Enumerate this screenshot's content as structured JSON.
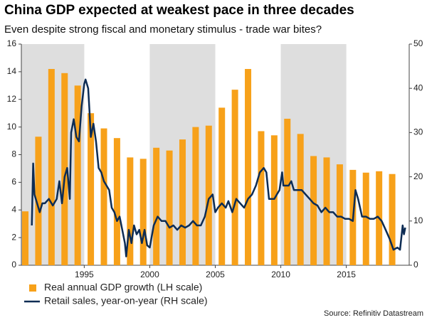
{
  "chart_data": {
    "type": "bar-line",
    "title": "China GDP expected at weakest pace in three decades",
    "subtitle": "Even despite strong fiscal and monetary stimulus - trade war bites?",
    "source": "Source: Refinitiv Datastream",
    "xlim": [
      1990.2,
      2019.8
    ],
    "xticks": [
      1995,
      2000,
      2005,
      2010,
      2015
    ],
    "ylim": [
      0,
      16
    ],
    "yticks": [
      0,
      2,
      4,
      6,
      8,
      10,
      12,
      14,
      16
    ],
    "y2lim": [
      0,
      50
    ],
    "y2ticks": [
      0,
      10,
      20,
      30,
      40,
      50
    ],
    "shading": "#dedede",
    "series": [
      {
        "name": "Real annual GDP growth (LH scale)",
        "color": "#f7a11a",
        "type": "bar",
        "x": [
          1990,
          1991,
          1992,
          1993,
          1994,
          1995,
          1996,
          1997,
          1998,
          1999,
          2000,
          2001,
          2002,
          2003,
          2004,
          2005,
          2006,
          2007,
          2008,
          2009,
          2010,
          2011,
          2012,
          2013,
          2014,
          2015,
          2016,
          2017,
          2018
        ],
        "values": [
          3.9,
          9.3,
          14.2,
          13.9,
          13.0,
          11.0,
          9.9,
          9.2,
          7.8,
          7.7,
          8.5,
          8.3,
          9.1,
          10.0,
          10.1,
          11.4,
          12.7,
          14.2,
          9.7,
          9.4,
          10.6,
          9.5,
          7.9,
          7.8,
          7.3,
          6.9,
          6.7,
          6.8,
          6.6
        ]
      },
      {
        "name": "Retail sales, year-on-year (RH scale)",
        "color": "#0d2c54",
        "type": "line",
        "axis": "y2",
        "x": [
          1991.0,
          1991.1,
          1991.2,
          1991.4,
          1991.6,
          1991.8,
          1992.0,
          1992.3,
          1992.6,
          1992.9,
          1993.1,
          1993.3,
          1993.5,
          1993.7,
          1993.9,
          1994.0,
          1994.2,
          1994.4,
          1994.6,
          1994.8,
          1995.0,
          1995.1,
          1995.3,
          1995.4,
          1995.5,
          1995.7,
          1995.9,
          1996.1,
          1996.3,
          1996.5,
          1996.7,
          1996.9,
          1997.1,
          1997.3,
          1997.5,
          1997.7,
          1997.9,
          1998.1,
          1998.2,
          1998.4,
          1998.6,
          1998.8,
          1999.0,
          1999.2,
          1999.4,
          1999.6,
          1999.8,
          2000.0,
          2000.3,
          2000.6,
          2000.9,
          2001.2,
          2001.5,
          2001.8,
          2002.1,
          2002.4,
          2002.7,
          2003.0,
          2003.3,
          2003.6,
          2003.9,
          2004.2,
          2004.5,
          2004.8,
          2005.0,
          2005.2,
          2005.5,
          2005.8,
          2006.0,
          2006.3,
          2006.6,
          2006.9,
          2007.2,
          2007.5,
          2007.8,
          2008.1,
          2008.4,
          2008.7,
          2008.9,
          2009.1,
          2009.3,
          2009.5,
          2009.7,
          2009.9,
          2010.1,
          2010.2,
          2010.4,
          2010.6,
          2010.8,
          2011.0,
          2011.3,
          2011.6,
          2011.9,
          2012.2,
          2012.5,
          2012.8,
          2013.1,
          2013.4,
          2013.7,
          2014.0,
          2014.3,
          2014.6,
          2014.9,
          2015.2,
          2015.5,
          2015.7,
          2015.9,
          2016.2,
          2016.5,
          2016.8,
          2017.1,
          2017.4,
          2017.7,
          2018.0,
          2018.3,
          2018.6,
          2018.9,
          2019.1,
          2019.3,
          2019.4,
          2019.5
        ],
        "values": [
          9,
          23,
          16,
          14,
          12,
          14,
          14,
          15,
          13.5,
          15,
          19,
          14,
          20,
          22,
          15,
          30,
          33,
          29,
          28,
          36,
          41,
          42,
          40,
          35,
          29,
          32,
          28,
          22,
          21,
          19,
          18,
          17,
          13,
          12,
          10,
          11,
          8,
          5,
          2,
          8,
          5,
          9,
          7,
          8,
          5,
          8,
          4.5,
          4,
          9,
          11,
          10,
          10,
          8.5,
          9,
          8,
          9,
          8.5,
          9,
          10,
          9,
          9,
          11,
          15,
          16,
          12,
          13,
          14,
          13,
          14.5,
          12,
          15,
          14,
          13,
          15,
          16,
          18,
          21,
          22,
          21,
          15,
          15,
          15,
          16,
          17,
          21,
          18,
          18,
          18,
          19,
          17,
          17,
          17,
          16,
          15,
          14,
          13.5,
          12,
          13,
          12,
          12,
          11,
          11,
          10.5,
          10.5,
          10,
          17,
          15,
          11,
          11,
          10.5,
          10.5,
          11,
          10,
          8,
          6,
          3.5,
          4,
          3.5,
          9,
          7,
          8.5
        ]
      }
    ]
  }
}
